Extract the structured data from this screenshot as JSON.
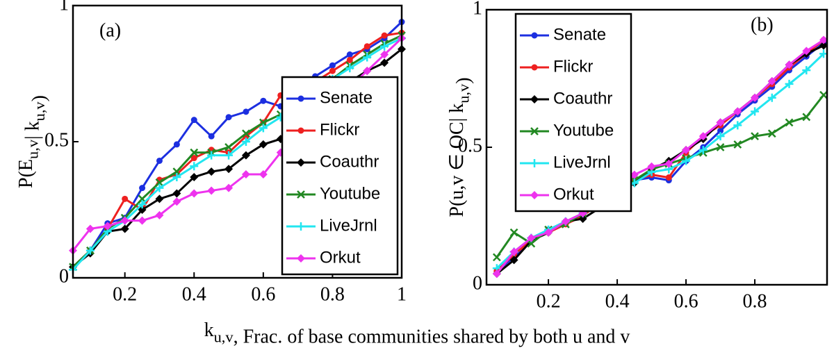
{
  "chart_data": [
    {
      "type": "line",
      "annotation": "(a)",
      "ylabel": [
        {
          "text": "P(E"
        },
        {
          "sub": "u,v"
        },
        {
          "text": "| k"
        },
        {
          "sub": "u,v"
        },
        {
          "text": ")"
        }
      ],
      "xlabel": [
        {
          "text": "k"
        },
        {
          "sub": "u,v"
        },
        {
          "text": ", Frac. of base communities shared by both u and v"
        }
      ],
      "x": [
        0.05,
        0.1,
        0.15,
        0.2,
        0.25,
        0.3,
        0.35,
        0.4,
        0.45,
        0.5,
        0.55,
        0.6,
        0.65,
        0.7,
        0.75,
        0.8,
        0.85,
        0.9,
        0.95,
        1
      ],
      "xlim": [
        0.05,
        1
      ],
      "xticks": [
        0.2,
        0.4,
        0.6,
        0.8,
        1
      ],
      "ylim": [
        0,
        1
      ],
      "yticks": [
        0,
        0.5,
        1
      ],
      "legend": "lower right",
      "series": [
        {
          "name": "Senate",
          "color": "#1c2fe0",
          "marker": "o",
          "values": [
            0.04,
            0.1,
            0.2,
            0.22,
            0.33,
            0.43,
            0.49,
            0.58,
            0.52,
            0.59,
            0.61,
            0.65,
            0.63,
            0.7,
            0.74,
            0.78,
            0.82,
            0.84,
            0.88,
            0.94
          ]
        },
        {
          "name": "Flickr",
          "color": "#ee2020",
          "marker": "o",
          "values": [
            0.04,
            0.1,
            0.18,
            0.29,
            0.25,
            0.36,
            0.38,
            0.44,
            0.47,
            0.46,
            0.52,
            0.57,
            0.67,
            0.68,
            0.72,
            0.76,
            0.8,
            0.85,
            0.89,
            0.9
          ]
        },
        {
          "name": "Coauthr",
          "color": "#000000",
          "marker": "d",
          "values": [
            0.04,
            0.09,
            0.17,
            0.18,
            0.25,
            0.29,
            0.31,
            0.37,
            0.39,
            0.4,
            0.45,
            0.49,
            0.51,
            0.55,
            0.6,
            0.66,
            0.72,
            0.76,
            0.79,
            0.84
          ]
        },
        {
          "name": "Youtube",
          "color": "#228822",
          "marker": "x",
          "values": [
            0.04,
            0.1,
            0.18,
            0.22,
            0.29,
            0.35,
            0.39,
            0.46,
            0.46,
            0.48,
            0.53,
            0.57,
            0.6,
            0.64,
            0.7,
            0.73,
            0.78,
            0.82,
            0.86,
            0.89
          ]
        },
        {
          "name": "LiveJrnl",
          "color": "#22e6f0",
          "marker": "+",
          "values": [
            0.03,
            0.1,
            0.17,
            0.21,
            0.27,
            0.33,
            0.37,
            0.41,
            0.45,
            0.45,
            0.5,
            0.55,
            0.59,
            0.64,
            0.69,
            0.73,
            0.77,
            0.81,
            0.85,
            0.88
          ]
        },
        {
          "name": "Orkut",
          "color": "#ee33ee",
          "marker": "d",
          "values": [
            0.1,
            0.18,
            0.19,
            0.21,
            0.21,
            0.23,
            0.28,
            0.31,
            0.32,
            0.33,
            0.38,
            0.38,
            0.46,
            0.5,
            0.57,
            0.62,
            0.7,
            0.76,
            0.82,
            0.88
          ]
        }
      ]
    },
    {
      "type": "line",
      "annotation": "(b)",
      "ylabel": [
        {
          "text": "P(u,v ∈ OC| k"
        },
        {
          "sub": "u,v"
        },
        {
          "text": ")"
        }
      ],
      "x": [
        0.05,
        0.1,
        0.15,
        0.2,
        0.25,
        0.3,
        0.35,
        0.4,
        0.45,
        0.5,
        0.55,
        0.6,
        0.65,
        0.7,
        0.75,
        0.8,
        0.85,
        0.9,
        0.95,
        1
      ],
      "xlim": [
        0.02,
        1.01
      ],
      "xticks": [
        0.2,
        0.4,
        0.6,
        0.8
      ],
      "ylim": [
        0,
        1
      ],
      "yticks": [
        0,
        0.5,
        1
      ],
      "legend": "upper left",
      "series": [
        {
          "name": "Senate",
          "color": "#1c2fe0",
          "marker": "o",
          "values": [
            0.05,
            0.1,
            0.17,
            0.2,
            0.23,
            0.25,
            0.3,
            0.33,
            0.38,
            0.39,
            0.38,
            0.45,
            0.5,
            0.56,
            0.62,
            0.67,
            0.72,
            0.78,
            0.83,
            0.88
          ]
        },
        {
          "name": "Flickr",
          "color": "#ee2020",
          "marker": "o",
          "values": [
            0.05,
            0.11,
            0.16,
            0.19,
            0.22,
            0.25,
            0.3,
            0.34,
            0.38,
            0.4,
            0.39,
            0.48,
            0.54,
            0.58,
            0.63,
            0.68,
            0.73,
            0.79,
            0.84,
            0.89
          ]
        },
        {
          "name": "Coauthr",
          "color": "#000000",
          "marker": "d",
          "values": [
            0.04,
            0.09,
            0.16,
            0.19,
            0.23,
            0.24,
            0.28,
            0.33,
            0.37,
            0.42,
            0.45,
            0.49,
            0.53,
            0.59,
            0.63,
            0.68,
            0.74,
            0.8,
            0.84,
            0.87
          ]
        },
        {
          "name": "Youtube",
          "color": "#228822",
          "marker": "x",
          "values": [
            0.1,
            0.19,
            0.15,
            0.2,
            0.22,
            0.26,
            0.29,
            0.33,
            0.38,
            0.42,
            0.44,
            0.46,
            0.48,
            0.5,
            0.51,
            0.54,
            0.55,
            0.59,
            0.61,
            0.69
          ]
        },
        {
          "name": "LiveJrnl",
          "color": "#22e6f0",
          "marker": "+",
          "values": [
            0.06,
            0.12,
            0.17,
            0.2,
            0.23,
            0.26,
            0.3,
            0.34,
            0.37,
            0.41,
            0.42,
            0.45,
            0.49,
            0.54,
            0.58,
            0.63,
            0.68,
            0.73,
            0.78,
            0.84
          ]
        },
        {
          "name": "Orkut",
          "color": "#ee33ee",
          "marker": "d",
          "values": [
            0.04,
            0.12,
            0.17,
            0.19,
            0.23,
            0.26,
            0.3,
            0.34,
            0.4,
            0.43,
            0.44,
            0.49,
            0.54,
            0.59,
            0.63,
            0.68,
            0.74,
            0.8,
            0.85,
            0.89
          ]
        }
      ]
    }
  ]
}
